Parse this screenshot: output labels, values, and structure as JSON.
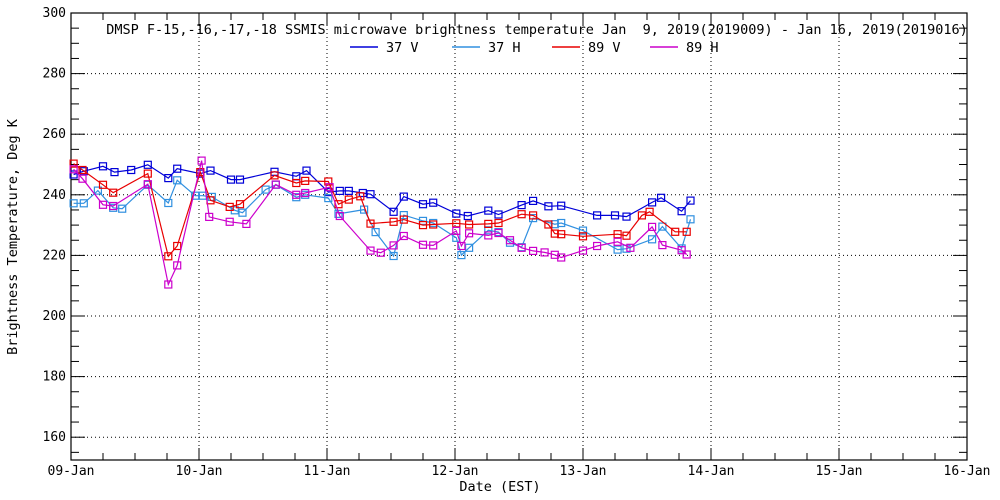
{
  "chart_data": {
    "type": "line",
    "title": "DMSP F-15,-16,-17,-18 SSMIS microwave brightness temperature Jan  9, 2019(2019009) - Jan 16, 2019(2019016)",
    "xlabel": "Date (EST)",
    "ylabel": "Brightness Temperature, Deg K",
    "x_unit": "days since 09-Jan-2019 00:00 EST",
    "xlim_days": [
      0,
      7
    ],
    "ylim": [
      152.5,
      300
    ],
    "x_tick_labels": [
      "09-Jan",
      "10-Jan",
      "11-Jan",
      "12-Jan",
      "13-Jan",
      "14-Jan",
      "15-Jan",
      "16-Jan"
    ],
    "x_minor_tick_days": 0.25,
    "y_major_ticks": [
      160,
      180,
      200,
      220,
      240,
      260,
      280,
      300
    ],
    "y_minor_tick_step": 5,
    "y_gridlines": [
      160,
      180,
      200,
      220,
      240,
      260,
      280
    ],
    "x_gridline_days": [
      1,
      2,
      3,
      4,
      5,
      6
    ],
    "grid_style": "black dotted",
    "legend_position": "top-inside-horizontal",
    "marker": "open-square",
    "series": [
      {
        "name": "37 V",
        "color": "#0000D8",
        "points": [
          [
            0.02,
            246.7
          ],
          [
            0.1,
            247.8
          ],
          [
            0.25,
            249.4
          ],
          [
            0.34,
            247.5
          ],
          [
            0.47,
            248.2
          ],
          [
            0.6,
            249.9
          ],
          [
            0.76,
            245.5
          ],
          [
            0.83,
            248.6
          ],
          [
            1.01,
            247.0
          ],
          [
            1.09,
            248.0
          ],
          [
            1.25,
            245.0
          ],
          [
            1.32,
            245.0
          ],
          [
            1.59,
            247.6
          ],
          [
            1.76,
            246.1
          ],
          [
            1.84,
            248.0
          ],
          [
            2.01,
            240.9
          ],
          [
            2.1,
            241.3
          ],
          [
            2.17,
            241.3
          ],
          [
            2.28,
            240.6
          ],
          [
            2.34,
            240.2
          ],
          [
            2.52,
            234.4
          ],
          [
            2.6,
            239.4
          ],
          [
            2.75,
            236.9
          ],
          [
            2.83,
            237.4
          ],
          [
            3.01,
            233.8
          ],
          [
            3.1,
            233.0
          ],
          [
            3.26,
            234.8
          ],
          [
            3.34,
            233.5
          ],
          [
            3.52,
            236.6
          ],
          [
            3.61,
            238.0
          ],
          [
            3.73,
            236.2
          ],
          [
            3.83,
            236.4
          ],
          [
            4.11,
            233.2
          ],
          [
            4.25,
            233.2
          ],
          [
            4.34,
            232.8
          ],
          [
            4.54,
            237.5
          ],
          [
            4.61,
            239.0
          ],
          [
            4.77,
            234.6
          ],
          [
            4.84,
            238.1
          ]
        ]
      },
      {
        "name": "37 H",
        "color": "#3090E0",
        "points": [
          [
            0.02,
            237.2
          ],
          [
            0.1,
            237.2
          ],
          [
            0.21,
            241.4
          ],
          [
            0.33,
            235.7
          ],
          [
            0.4,
            235.4
          ],
          [
            0.6,
            243.3
          ],
          [
            0.76,
            237.3
          ],
          [
            0.83,
            244.8
          ],
          [
            0.97,
            239.7
          ],
          [
            1.03,
            239.7
          ],
          [
            1.1,
            239.3
          ],
          [
            1.28,
            234.9
          ],
          [
            1.34,
            234.1
          ],
          [
            1.52,
            241.7
          ],
          [
            1.6,
            243.3
          ],
          [
            1.76,
            239.2
          ],
          [
            1.83,
            240.0
          ],
          [
            2.01,
            238.9
          ],
          [
            2.09,
            233.7
          ],
          [
            2.29,
            235.1
          ],
          [
            2.38,
            227.7
          ],
          [
            2.52,
            219.8
          ],
          [
            2.6,
            233.3
          ],
          [
            2.75,
            231.4
          ],
          [
            2.83,
            230.7
          ],
          [
            3.01,
            225.8
          ],
          [
            3.05,
            220.1
          ],
          [
            3.11,
            222.5
          ],
          [
            3.26,
            228.3
          ],
          [
            3.34,
            227.7
          ],
          [
            3.43,
            224.2
          ],
          [
            3.52,
            222.7
          ],
          [
            3.61,
            232.3
          ],
          [
            3.78,
            230.3
          ],
          [
            3.83,
            230.7
          ],
          [
            4.0,
            228.2
          ],
          [
            4.27,
            221.9
          ],
          [
            4.34,
            222.2
          ],
          [
            4.54,
            225.3
          ],
          [
            4.62,
            229.5
          ],
          [
            4.77,
            222.3
          ],
          [
            4.84,
            231.9
          ]
        ]
      },
      {
        "name": "89 V",
        "color": "#E80000",
        "points": [
          [
            0.02,
            250.3
          ],
          [
            0.09,
            248.2
          ],
          [
            0.25,
            243.3
          ],
          [
            0.33,
            240.7
          ],
          [
            0.6,
            247.0
          ],
          [
            0.76,
            219.7
          ],
          [
            0.83,
            223.1
          ],
          [
            1.01,
            247.5
          ],
          [
            1.09,
            238.2
          ],
          [
            1.24,
            236.0
          ],
          [
            1.32,
            236.9
          ],
          [
            1.59,
            246.4
          ],
          [
            1.76,
            243.9
          ],
          [
            1.83,
            244.6
          ],
          [
            2.01,
            244.4
          ],
          [
            2.09,
            236.9
          ],
          [
            2.17,
            238.4
          ],
          [
            2.26,
            239.5
          ],
          [
            2.34,
            230.5
          ],
          [
            2.52,
            231.1
          ],
          [
            2.6,
            231.8
          ],
          [
            2.75,
            230.0
          ],
          [
            2.83,
            230.2
          ],
          [
            3.01,
            230.6
          ],
          [
            3.11,
            230.2
          ],
          [
            3.26,
            230.4
          ],
          [
            3.34,
            230.7
          ],
          [
            3.52,
            233.6
          ],
          [
            3.61,
            233.2
          ],
          [
            3.73,
            230.2
          ],
          [
            3.78,
            227.2
          ],
          [
            3.83,
            227.0
          ],
          [
            4.0,
            226.3
          ],
          [
            4.27,
            227.0
          ],
          [
            4.34,
            226.5
          ],
          [
            4.46,
            233.2
          ],
          [
            4.52,
            234.4
          ],
          [
            4.72,
            227.8
          ],
          [
            4.81,
            227.8
          ]
        ]
      },
      {
        "name": "89 H",
        "color": "#CC00CC",
        "points": [
          [
            0.02,
            248.4
          ],
          [
            0.09,
            245.3
          ],
          [
            0.25,
            236.7
          ],
          [
            0.33,
            236.3
          ],
          [
            0.6,
            243.5
          ],
          [
            0.76,
            210.4
          ],
          [
            0.83,
            216.7
          ],
          [
            1.02,
            251.3
          ],
          [
            1.08,
            232.7
          ],
          [
            1.24,
            231.1
          ],
          [
            1.37,
            230.4
          ],
          [
            1.6,
            243.4
          ],
          [
            1.76,
            240.0
          ],
          [
            1.83,
            240.6
          ],
          [
            2.02,
            242.5
          ],
          [
            2.1,
            233.0
          ],
          [
            2.34,
            221.6
          ],
          [
            2.42,
            220.9
          ],
          [
            2.52,
            223.3
          ],
          [
            2.6,
            226.4
          ],
          [
            2.75,
            223.5
          ],
          [
            2.83,
            223.3
          ],
          [
            3.01,
            228.1
          ],
          [
            3.05,
            223.1
          ],
          [
            3.11,
            227.3
          ],
          [
            3.26,
            226.6
          ],
          [
            3.34,
            227.4
          ],
          [
            3.43,
            225.0
          ],
          [
            3.52,
            222.5
          ],
          [
            3.61,
            221.5
          ],
          [
            3.7,
            221.0
          ],
          [
            3.78,
            220.2
          ],
          [
            3.83,
            219.3
          ],
          [
            4.0,
            221.6
          ],
          [
            4.11,
            223.1
          ],
          [
            4.27,
            224.5
          ],
          [
            4.37,
            222.5
          ],
          [
            4.54,
            229.4
          ],
          [
            4.62,
            223.4
          ],
          [
            4.77,
            221.7
          ],
          [
            4.81,
            220.3
          ]
        ]
      }
    ]
  }
}
